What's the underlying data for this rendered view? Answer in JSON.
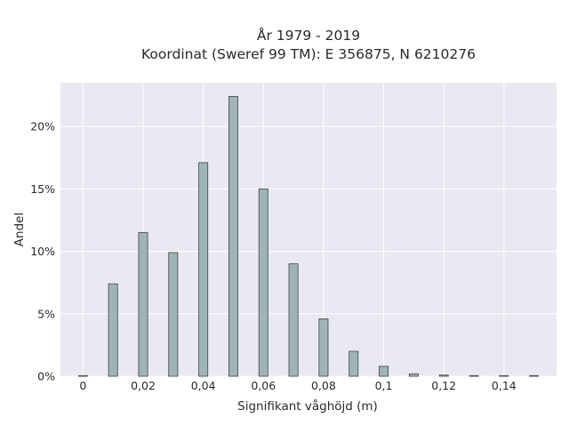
{
  "chart_data": {
    "type": "bar",
    "title_line1": "År 1979 - 2019",
    "title_line2": "Koordinat (Sweref 99 TM): E 356875, N 6210276",
    "xlabel": "Signifikant våghöjd (m)",
    "ylabel": "Andel",
    "xlim": [
      -0.0075,
      0.1575
    ],
    "ylim": [
      0,
      0.235
    ],
    "grid": true,
    "bar_width": 0.003,
    "x_ticks": [
      {
        "value": 0,
        "label": "0"
      },
      {
        "value": 0.02,
        "label": "0,02"
      },
      {
        "value": 0.04,
        "label": "0,04"
      },
      {
        "value": 0.06,
        "label": "0,06"
      },
      {
        "value": 0.08,
        "label": "0,08"
      },
      {
        "value": 0.1,
        "label": "0,1"
      },
      {
        "value": 0.12,
        "label": "0,12"
      },
      {
        "value": 0.14,
        "label": "0,14"
      }
    ],
    "y_ticks": [
      {
        "value": 0,
        "label": "0%"
      },
      {
        "value": 0.05,
        "label": "5%"
      },
      {
        "value": 0.1,
        "label": "10%"
      },
      {
        "value": 0.15,
        "label": "15%"
      },
      {
        "value": 0.2,
        "label": "20%"
      }
    ],
    "x": [
      0,
      0.01,
      0.02,
      0.03,
      0.04,
      0.05,
      0.06,
      0.07,
      0.08,
      0.09,
      0.1,
      0.11,
      0.12,
      0.13,
      0.14,
      0.15
    ],
    "values": [
      0.0005,
      0.074,
      0.115,
      0.099,
      0.171,
      0.224,
      0.15,
      0.09,
      0.046,
      0.02,
      0.008,
      0.002,
      0.001,
      0.0005,
      0.0005,
      0.0005
    ]
  },
  "colors": {
    "plot_background": "#e9e9f1",
    "grid": "#ffffff",
    "bar_fill": "#9fb5b5",
    "bar_stroke": "#3d4646",
    "text": "#2a2a2a"
  }
}
